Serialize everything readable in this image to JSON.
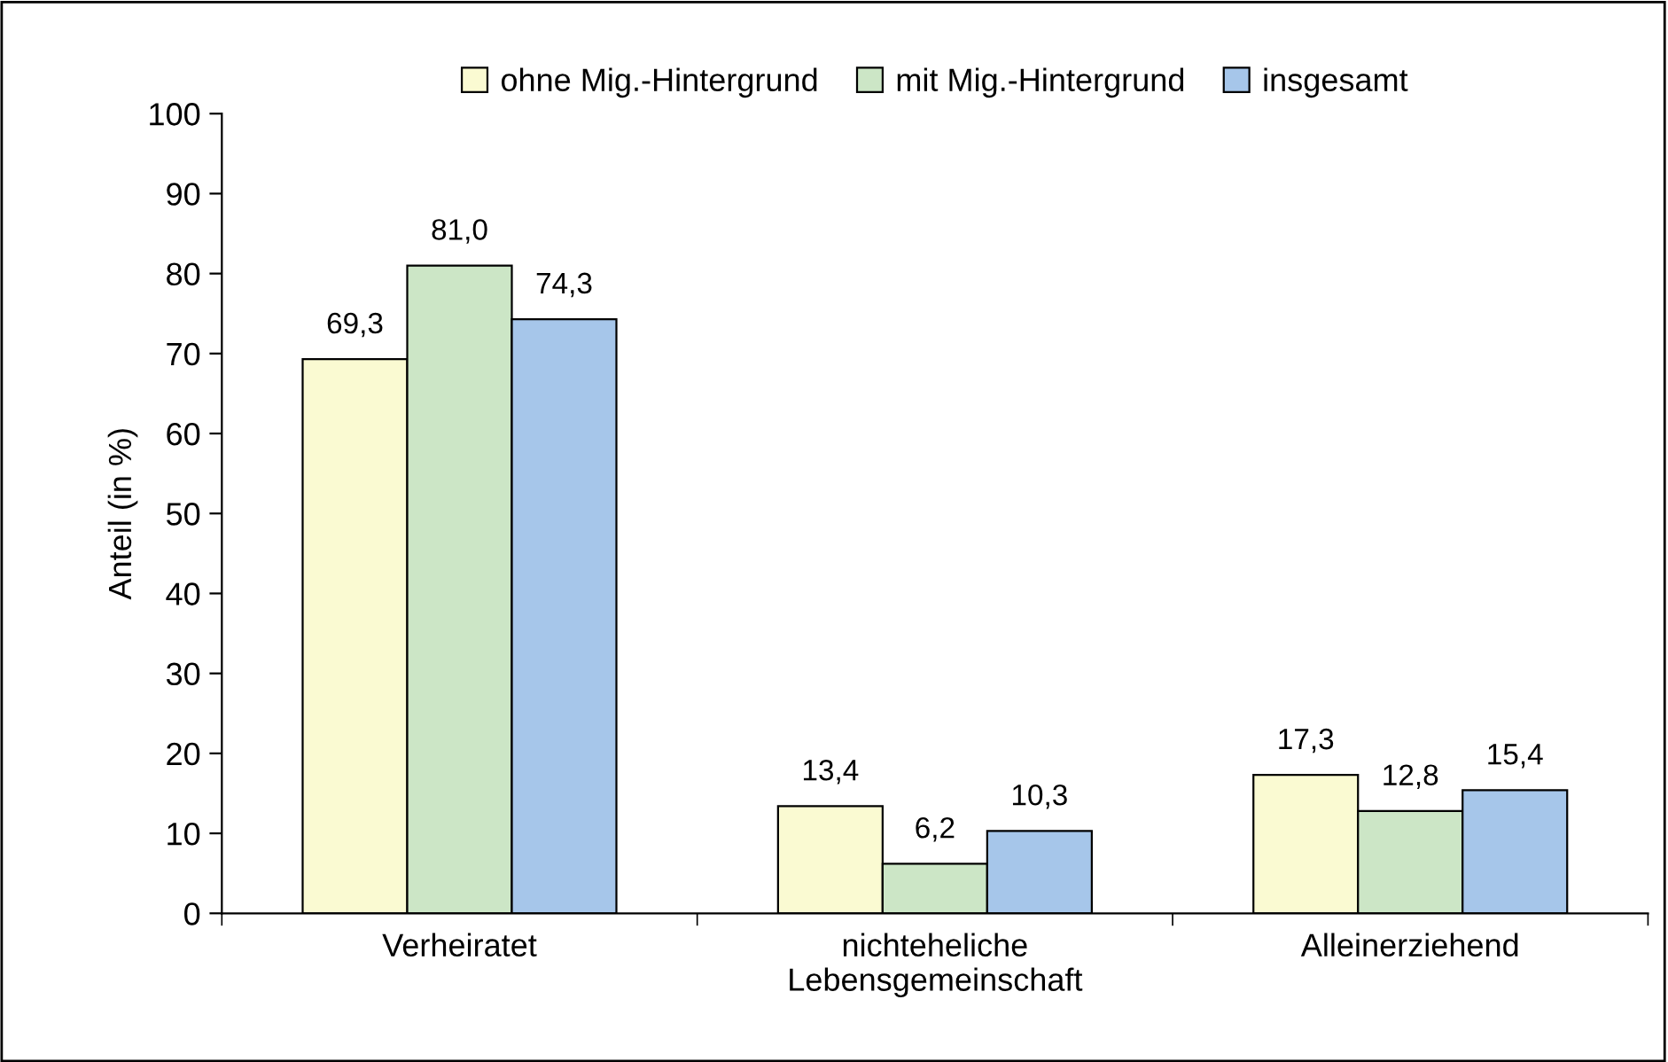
{
  "chart_data": {
    "type": "bar",
    "ylabel": "Anteil (in %)",
    "categories": [
      "Verheiratet",
      "nichteheliche\nLebensgemeinschaft",
      "Alleinerziehend"
    ],
    "series": [
      {
        "name": "ohne Mig.-Hintergrund",
        "color": "#fafad2",
        "values": [
          69.3,
          13.4,
          17.3
        ],
        "value_labels": [
          "69,3",
          "13,4",
          "17,3"
        ]
      },
      {
        "name": "mit Mig.-Hintergrund",
        "color": "#cce6c6",
        "values": [
          81.0,
          6.2,
          12.8
        ],
        "value_labels": [
          "81,0",
          "6,2",
          "12,8"
        ]
      },
      {
        "name": "insgesamt",
        "color": "#a6c6ea",
        "values": [
          74.3,
          10.3,
          15.4
        ],
        "value_labels": [
          "74,3",
          "10,3",
          "15,4"
        ]
      }
    ],
    "ylim": [
      0,
      100
    ],
    "yticks": [
      0,
      10,
      20,
      30,
      40,
      50,
      60,
      70,
      80,
      90,
      100
    ],
    "grid": false,
    "legend": "top"
  }
}
